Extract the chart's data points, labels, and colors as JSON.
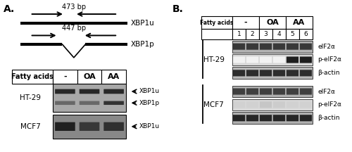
{
  "panel_a_label": "A.",
  "panel_b_label": "B.",
  "bg": "#ffffff",
  "lc": "#000000",
  "bp1": "473 bp",
  "bp2": "447 bp",
  "xbp1u": "XBP1u",
  "xbp1p": "XBP1p",
  "gel_header": [
    "Fatty acids",
    "-",
    "OA",
    "AA"
  ],
  "gel_labels": [
    "HT-29",
    "MCF7"
  ],
  "wb_labels_ht29": [
    "eIF2α",
    "p-eIF2α",
    "β-actin"
  ],
  "wb_labels_mcf7": [
    "eIF2α",
    "p-eIF2α",
    "β-actin"
  ],
  "wb_row_labels": [
    "HT-29",
    "MCF7"
  ]
}
